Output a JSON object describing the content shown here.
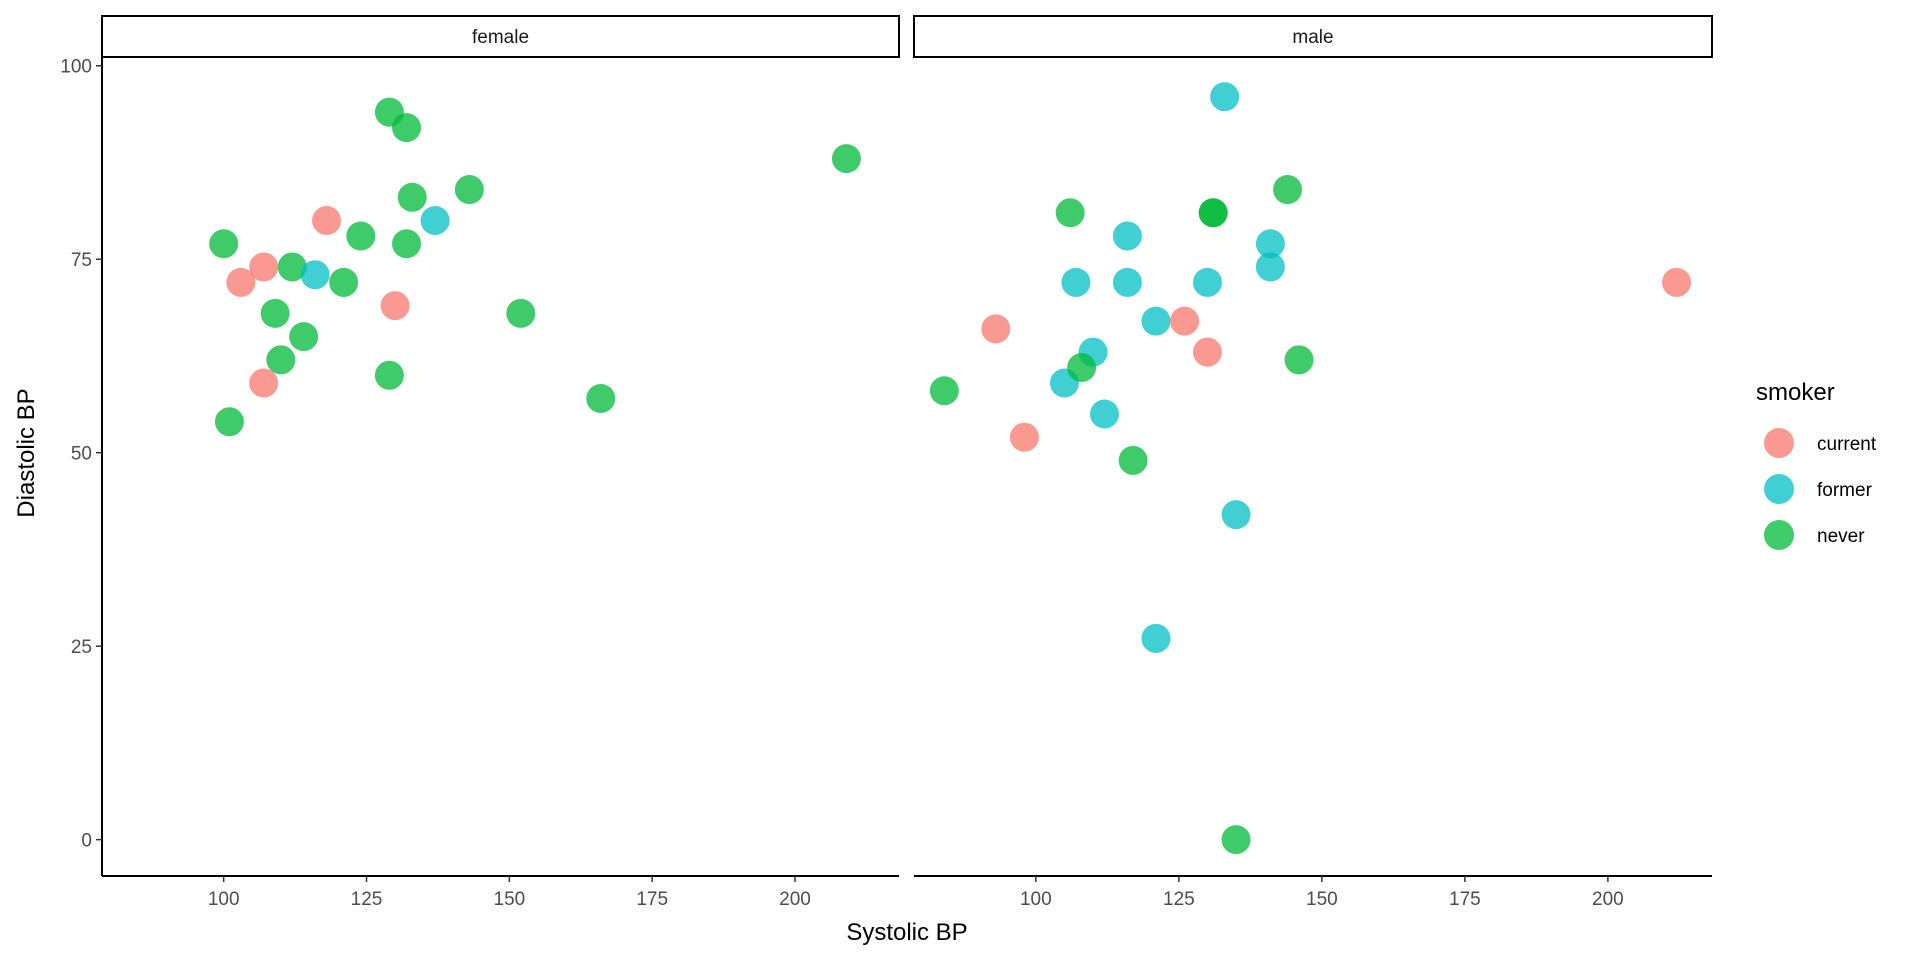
{
  "chart_data": {
    "type": "scatter",
    "xlabel": "Systolic BP",
    "ylabel": "Diastolic BP",
    "xlim": [
      78.7,
      218.2
    ],
    "ylim": [
      -4.7,
      101
    ],
    "xticks": [
      100,
      125,
      150,
      175,
      200
    ],
    "yticks": [
      0,
      25,
      50,
      75,
      100
    ],
    "grid": false,
    "legend": {
      "title": "smoker",
      "position": "right",
      "entries": [
        "current",
        "former",
        "never"
      ]
    },
    "colors": {
      "current": "#F8766D",
      "former": "#00BFC4",
      "never": "#00BA38"
    },
    "alpha": 0.75,
    "facets": [
      {
        "label": "female",
        "points": [
          {
            "x": 129,
            "y": 94,
            "smoker": "never"
          },
          {
            "x": 132,
            "y": 92,
            "smoker": "never"
          },
          {
            "x": 209,
            "y": 88,
            "smoker": "never"
          },
          {
            "x": 143,
            "y": 84,
            "smoker": "never"
          },
          {
            "x": 133,
            "y": 83,
            "smoker": "never"
          },
          {
            "x": 124,
            "y": 78,
            "smoker": "never"
          },
          {
            "x": 132,
            "y": 77,
            "smoker": "never"
          },
          {
            "x": 100,
            "y": 77,
            "smoker": "never"
          },
          {
            "x": 112,
            "y": 74,
            "smoker": "never"
          },
          {
            "x": 121,
            "y": 72,
            "smoker": "never"
          },
          {
            "x": 109,
            "y": 68,
            "smoker": "never"
          },
          {
            "x": 152,
            "y": 68,
            "smoker": "never"
          },
          {
            "x": 114,
            "y": 65,
            "smoker": "never"
          },
          {
            "x": 110,
            "y": 62,
            "smoker": "never"
          },
          {
            "x": 129,
            "y": 60,
            "smoker": "never"
          },
          {
            "x": 166,
            "y": 57,
            "smoker": "never"
          },
          {
            "x": 101,
            "y": 54,
            "smoker": "never"
          },
          {
            "x": 118,
            "y": 80,
            "smoker": "current"
          },
          {
            "x": 107,
            "y": 74,
            "smoker": "current"
          },
          {
            "x": 103,
            "y": 72,
            "smoker": "current"
          },
          {
            "x": 130,
            "y": 69,
            "smoker": "current"
          },
          {
            "x": 107,
            "y": 59,
            "smoker": "current"
          },
          {
            "x": 137,
            "y": 80,
            "smoker": "former"
          },
          {
            "x": 116,
            "y": 73,
            "smoker": "former"
          }
        ]
      },
      {
        "label": "male",
        "points": [
          {
            "x": 133,
            "y": 96,
            "smoker": "former"
          },
          {
            "x": 116,
            "y": 78,
            "smoker": "former"
          },
          {
            "x": 141,
            "y": 77,
            "smoker": "former"
          },
          {
            "x": 141,
            "y": 74,
            "smoker": "former"
          },
          {
            "x": 107,
            "y": 72,
            "smoker": "former"
          },
          {
            "x": 116,
            "y": 72,
            "smoker": "former"
          },
          {
            "x": 130,
            "y": 72,
            "smoker": "former"
          },
          {
            "x": 121,
            "y": 67,
            "smoker": "former"
          },
          {
            "x": 110,
            "y": 63,
            "smoker": "former"
          },
          {
            "x": 105,
            "y": 59,
            "smoker": "former"
          },
          {
            "x": 112,
            "y": 55,
            "smoker": "former"
          },
          {
            "x": 135,
            "y": 42,
            "smoker": "former"
          },
          {
            "x": 121,
            "y": 26,
            "smoker": "former"
          },
          {
            "x": 106,
            "y": 81,
            "smoker": "never"
          },
          {
            "x": 131,
            "y": 81,
            "smoker": "never"
          },
          {
            "x": 131,
            "y": 81,
            "smoker": "never"
          },
          {
            "x": 144,
            "y": 84,
            "smoker": "never"
          },
          {
            "x": 146,
            "y": 62,
            "smoker": "never"
          },
          {
            "x": 108,
            "y": 61,
            "smoker": "never"
          },
          {
            "x": 84,
            "y": 58,
            "smoker": "never"
          },
          {
            "x": 117,
            "y": 49,
            "smoker": "never"
          },
          {
            "x": 135,
            "y": 0,
            "smoker": "never"
          },
          {
            "x": 212,
            "y": 72,
            "smoker": "current"
          },
          {
            "x": 93,
            "y": 66,
            "smoker": "current"
          },
          {
            "x": 126,
            "y": 67,
            "smoker": "current"
          },
          {
            "x": 130,
            "y": 63,
            "smoker": "current"
          },
          {
            "x": 98,
            "y": 52,
            "smoker": "current"
          }
        ]
      }
    ]
  }
}
